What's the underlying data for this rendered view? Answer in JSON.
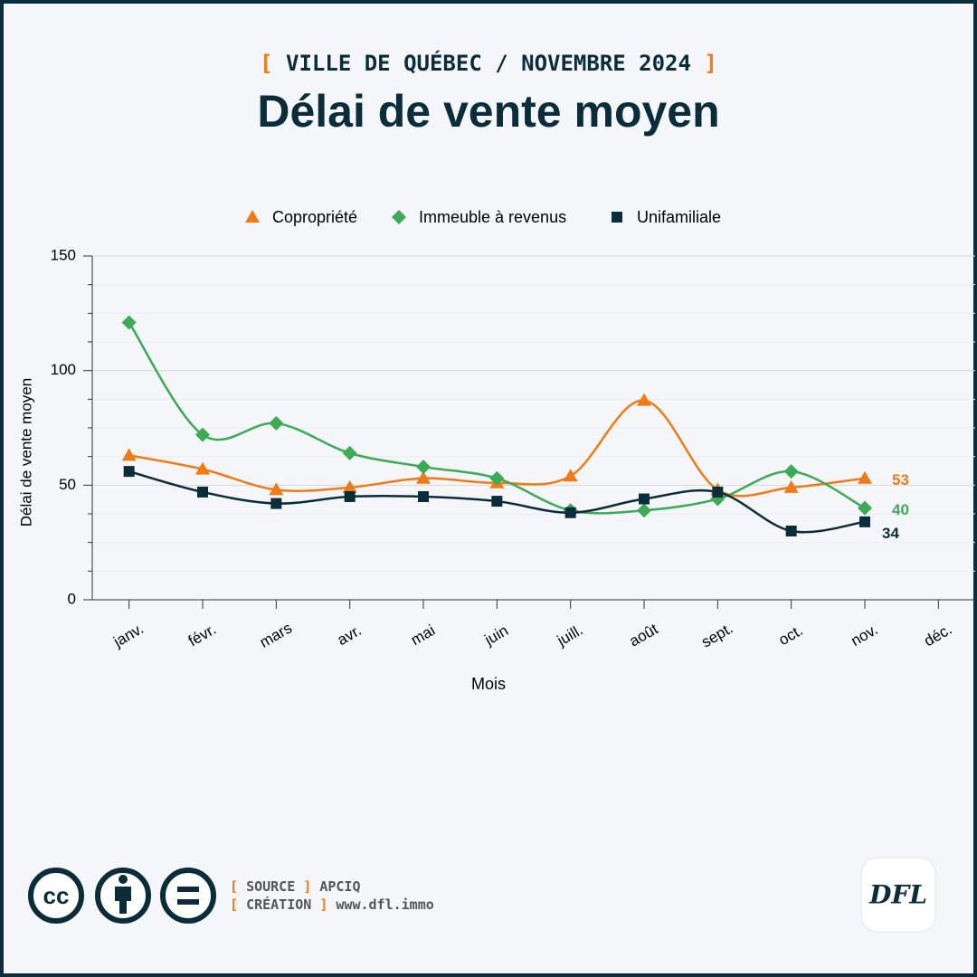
{
  "brackets": [
    "[",
    "]"
  ],
  "chart_data": {
    "type": "line",
    "subtitle": "VILLE DE QUÉBEC / NOVEMBRE 2024",
    "title": "Délai de vente moyen",
    "x_label": "Mois",
    "y_label": "Délai de vente moyen",
    "categories": [
      "janv.",
      "févr.",
      "mars",
      "avr.",
      "mai",
      "juin",
      "juill.",
      "août",
      "sept.",
      "oct.",
      "nov.",
      "déc."
    ],
    "series": [
      {
        "name": "Copropriété",
        "color": "#f07b16",
        "marker": "triangle",
        "values": [
          63,
          57,
          48,
          49,
          53,
          51,
          54,
          87,
          48,
          49,
          53,
          null
        ]
      },
      {
        "name": "Immeuble à revenus",
        "color": "#3daa55",
        "marker": "diamond",
        "values": [
          121,
          72,
          77,
          64,
          58,
          53,
          39,
          39,
          44,
          56,
          40,
          null
        ]
      },
      {
        "name": "Unifamiliale",
        "color": "#0b2d3a",
        "marker": "square",
        "values": [
          56,
          47,
          42,
          45,
          45,
          43,
          38,
          44,
          47,
          30,
          34,
          null
        ]
      }
    ],
    "ylim": [
      0,
      150
    ],
    "yticks": [
      0,
      50,
      100,
      150
    ],
    "yminorticks": [
      12.5,
      25,
      37.5,
      62.5,
      75,
      87.5,
      112.5,
      125,
      137.5
    ],
    "grid": true,
    "legend": "top",
    "end_labels": true
  },
  "footer": {
    "license": "cc",
    "source_label": "SOURCE",
    "source": "APCIQ",
    "creation_label": "CRÉATION",
    "creation": "www.dfl.immo",
    "logo": "DFL"
  }
}
